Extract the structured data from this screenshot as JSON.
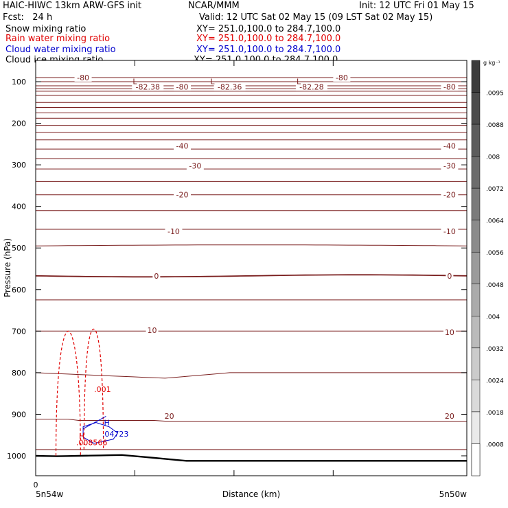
{
  "header": {
    "model": "HAIC-HIWC 13km ARW-GFS init",
    "org": "NCAR/MMM",
    "init": "Init: 12 UTC Fri 01 May 15",
    "fcst": "Fcst:   24 h",
    "valid": "Valid: 12 UTC Sat 02 May 15 (09 LST Sat 02 May 15)"
  },
  "fields": [
    {
      "name": "Snow mixing ratio",
      "xy": "XY= 251.0,100.0 to 284.7,100.0",
      "color": "#000000"
    },
    {
      "name": "Rain water mixing ratio",
      "xy": "XY= 251.0,100.0 to 284.7,100.0",
      "color": "#e00000"
    },
    {
      "name": "Cloud water mixing ratio",
      "xy": "XY= 251.0,100.0 to 284.7,100.0",
      "color": "#0000cc"
    },
    {
      "name": "Cloud ice mixing ratio",
      "xy": "XY= 251.0,100.0 to 284.7,100.0",
      "color": "#000000"
    }
  ],
  "chart_data": {
    "type": "cross-section",
    "xlabel": "Distance (km)",
    "ylabel": "Pressure (hPa)",
    "x_start_label": "0",
    "x_left_label": "5n54w",
    "x_right_label": "5n50w",
    "y_ticks": [
      100,
      200,
      300,
      400,
      500,
      600,
      700,
      800,
      900,
      1000
    ],
    "ylim": [
      1050,
      75
    ],
    "temperature_labels": [
      {
        "text": "-80",
        "x": 0.11,
        "p": 90
      },
      {
        "text": "-80",
        "x": 0.34,
        "p": 112
      },
      {
        "text": "-80",
        "x": 0.71,
        "p": 90
      },
      {
        "text": "-80",
        "x": 0.96,
        "p": 112
      },
      {
        "text": "-82.38",
        "x": 0.26,
        "p": 112
      },
      {
        "text": "-82.36",
        "x": 0.45,
        "p": 112
      },
      {
        "text": "-82.28",
        "x": 0.64,
        "p": 112
      },
      {
        "text": "-40",
        "x": 0.34,
        "p": 254
      },
      {
        "text": "-40",
        "x": 0.96,
        "p": 254
      },
      {
        "text": "-30",
        "x": 0.37,
        "p": 302
      },
      {
        "text": "-30",
        "x": 0.96,
        "p": 302
      },
      {
        "text": "-20",
        "x": 0.34,
        "p": 372
      },
      {
        "text": "-20",
        "x": 0.96,
        "p": 372
      },
      {
        "text": "-10",
        "x": 0.32,
        "p": 460
      },
      {
        "text": "-10",
        "x": 0.96,
        "p": 460
      },
      {
        "text": "0",
        "x": 0.28,
        "p": 567
      },
      {
        "text": "0",
        "x": 0.96,
        "p": 567
      },
      {
        "text": "10",
        "x": 0.27,
        "p": 698
      },
      {
        "text": "10",
        "x": 0.96,
        "p": 703
      },
      {
        "text": "20",
        "x": 0.31,
        "p": 904
      },
      {
        "text": "20",
        "x": 0.96,
        "p": 904
      }
    ],
    "low_markers": [
      {
        "text": "L",
        "x": 0.23,
        "p": 99
      },
      {
        "text": "L",
        "x": 0.41,
        "p": 99
      },
      {
        "text": "L",
        "x": 0.61,
        "p": 99
      }
    ],
    "rain_label": {
      "text": ".001",
      "x": 0.155,
      "p": 840
    },
    "rain_max": {
      "text": ".008566",
      "x": 0.13,
      "p": 968
    },
    "rain_max_marker": {
      "text": "H",
      "x": 0.107,
      "p": 952
    },
    "cloud_max": {
      "text": ".04723",
      "x": 0.185,
      "p": 947
    },
    "cloud_max_marker": {
      "text": "H",
      "x": 0.165,
      "p": 920
    },
    "colorbar": {
      "unit": "g kg⁻¹",
      "labels": [
        ".0095",
        ".0088",
        ".008",
        ".0072",
        ".0064",
        ".0056",
        ".0048",
        ".004",
        ".0032",
        ".0024",
        ".0018",
        ".0008"
      ]
    }
  }
}
